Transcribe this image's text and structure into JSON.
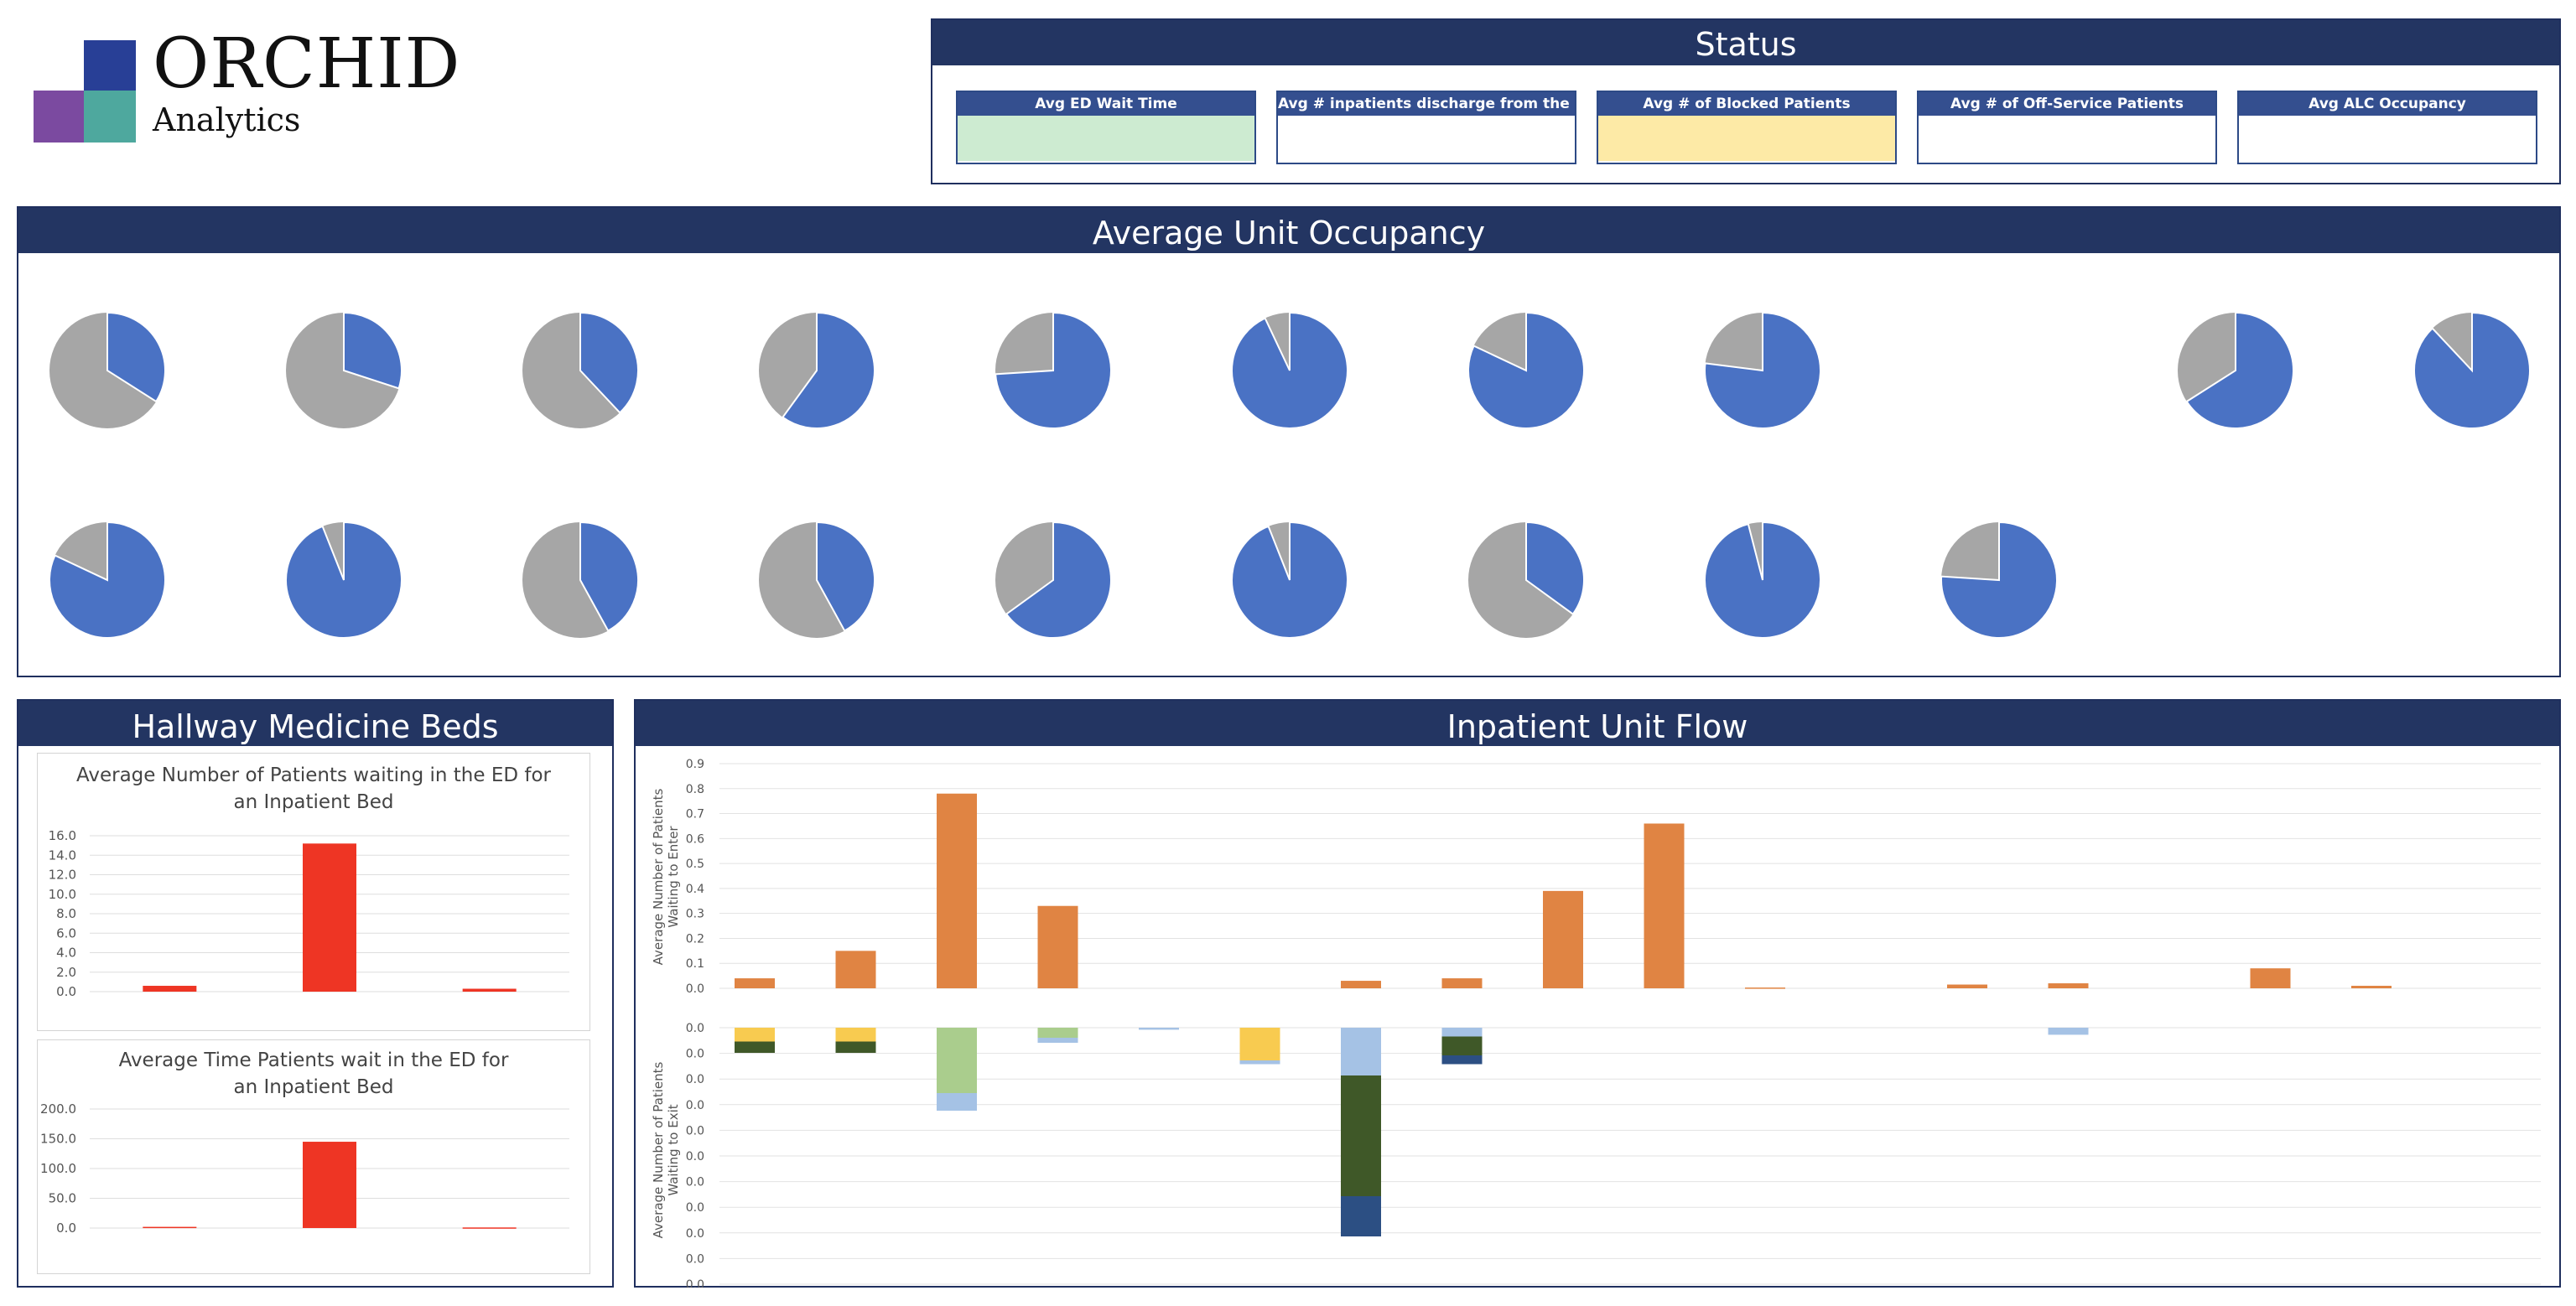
{
  "logo": {
    "title": "ORCHID",
    "subtitle": "Analytics"
  },
  "status": {
    "title": "Status",
    "kpis": [
      {
        "label": "Avg ED Wait Time",
        "color": "#cdebd1"
      },
      {
        "label": "Avg # inpatients discharge from the ED",
        "color": "#ffffff"
      },
      {
        "label": "Avg # of Blocked Patients",
        "color": "#fdeaa6"
      },
      {
        "label": "Avg # of Off-Service Patients",
        "color": "#ffffff"
      },
      {
        "label": "Avg ALC Occupancy",
        "color": "#ffffff"
      }
    ]
  },
  "occupancy": {
    "title": "Average Unit Occupancy",
    "colors": {
      "occupied": "#4a72c4",
      "empty": "#a6a6a6"
    },
    "row1": [
      0.34,
      0.3,
      0.38,
      0.6,
      0.74,
      0.93,
      0.82,
      0.77,
      null,
      0.66,
      0.88
    ],
    "row2": [
      0.82,
      0.94,
      0.42,
      0.42,
      0.65,
      0.94,
      0.35,
      0.96,
      0.76
    ]
  },
  "hallway": {
    "title": "Hallway Medicine Beds",
    "chart1": {
      "title": "Average Number of Patients waiting in the ED for an Inpatient Bed",
      "ticks": [
        "16.0",
        "14.0",
        "12.0",
        "10.0",
        "8.0",
        "6.0",
        "4.0",
        "2.0",
        "0.0"
      ]
    },
    "chart2": {
      "title": "Average Time Patients wait in the ED for an Inpatient Bed",
      "ticks": [
        "200.0",
        "150.0",
        "100.0",
        "50.0",
        "0.0"
      ]
    }
  },
  "flow": {
    "title": "Inpatient Unit Flow",
    "top_ylabel_1": "Average Number of Patients",
    "top_ylabel_2": "Waiting to Enter",
    "bottom_ylabel_1": "Average Number of Patients",
    "bottom_ylabel_2": "Waiting to Exit",
    "top_ticks": [
      "0.9",
      "0.8",
      "0.7",
      "0.6",
      "0.5",
      "0.4",
      "0.3",
      "0.2",
      "0.1",
      "0.0"
    ],
    "bottom_ticks": [
      "0.0",
      "0.0",
      "0.0",
      "0.0",
      "0.0",
      "0.0",
      "0.0",
      "0.0",
      "0.0",
      "0.0",
      "0.0"
    ]
  },
  "chart_data": [
    {
      "type": "bar",
      "title": "Average Number of Patients waiting in the ED for an Inpatient Bed",
      "categories": [
        "",
        "",
        ""
      ],
      "values": [
        0.6,
        15.2,
        0.3
      ],
      "ylim": [
        0,
        16
      ],
      "color": "#ee3524",
      "grid": true
    },
    {
      "type": "bar",
      "title": "Average Time Patients wait in the ED for an Inpatient Bed",
      "categories": [
        "",
        "",
        ""
      ],
      "values": [
        2,
        145,
        1
      ],
      "ylim": [
        0,
        200
      ],
      "color": "#ee3524",
      "grid": true
    },
    {
      "type": "bar",
      "ylabel": "Average Number of Patients Waiting to Enter",
      "ylim": [
        0,
        0.9
      ],
      "color": "#e08443",
      "values": [
        0.04,
        0.15,
        0.78,
        0.33,
        0,
        0,
        0.03,
        0.04,
        0.39,
        0.66,
        0.003,
        0,
        0.015,
        0.02,
        0,
        0.08,
        0.01
      ],
      "grid": true
    },
    {
      "type": "bar",
      "stacked": true,
      "ylabel": "Average Number of Patients Waiting to Exit",
      "series": [
        {
          "color": "#f8cb50",
          "values": [
            0.055,
            0.055,
            0,
            0,
            0,
            0.13,
            0,
            0,
            0,
            0,
            0,
            0,
            0,
            0,
            0,
            0,
            0
          ]
        },
        {
          "color": "#aacd8d",
          "values": [
            0,
            0,
            0.26,
            0.04,
            0,
            0,
            0,
            0,
            0,
            0,
            0,
            0,
            0,
            0,
            0,
            0,
            0
          ]
        },
        {
          "color": "#a5c2e5",
          "values": [
            0,
            0,
            0.07,
            0.02,
            0.008,
            0.015,
            0.19,
            0.035,
            0,
            0,
            0,
            0,
            0,
            0.028,
            0,
            0,
            0
          ]
        },
        {
          "color": "#3f5828",
          "values": [
            0.045,
            0.045,
            0,
            0,
            0,
            0,
            0.48,
            0.075,
            0,
            0,
            0,
            0,
            0,
            0,
            0,
            0,
            0
          ]
        },
        {
          "color": "#2c4f83",
          "values": [
            0,
            0,
            0,
            0,
            0,
            0,
            0.16,
            0.035,
            0,
            0,
            0,
            0,
            0,
            0,
            0,
            0,
            0
          ]
        }
      ],
      "grid": true
    }
  ]
}
